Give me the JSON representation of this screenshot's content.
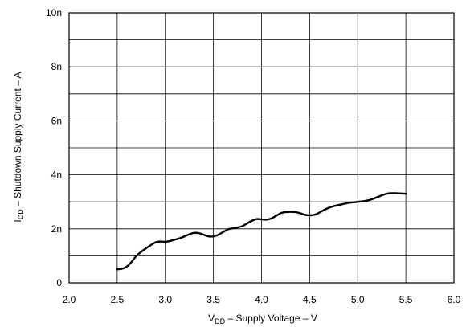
{
  "chart_data": {
    "type": "line",
    "xlabel": {
      "main": "V",
      "sub": "DD",
      "rest": " – Supply Voltage – V"
    },
    "ylabel": {
      "main": "I",
      "sub": "DD",
      "rest": " – Shutdown Supply Current – A"
    },
    "xlim": [
      2.0,
      6.0
    ],
    "ylim": [
      0,
      10
    ],
    "xticks": [
      2.0,
      2.5,
      3.0,
      3.5,
      4.0,
      4.5,
      5.0,
      5.5,
      6.0
    ],
    "xtick_labels": [
      "2.0",
      "2.5",
      "3.0",
      "3.5",
      "4.0",
      "4.5",
      "5.0",
      "5.5",
      "6.0"
    ],
    "yticks": [
      0,
      2,
      4,
      6,
      8,
      10
    ],
    "ytick_labels": [
      "0",
      "2n",
      "4n",
      "6n",
      "8n",
      "10n"
    ],
    "grid_x": [
      2.0,
      2.5,
      3.0,
      3.5,
      4.0,
      4.5,
      5.0,
      5.5,
      6.0
    ],
    "grid_y": [
      0,
      1,
      2,
      3,
      4,
      5,
      6,
      7,
      8,
      9,
      10
    ],
    "grid": true,
    "series": [
      {
        "x": [
          2.5,
          2.55,
          2.6,
          2.65,
          2.7,
          2.75,
          2.8,
          2.85,
          2.9,
          2.95,
          3.0,
          3.05,
          3.1,
          3.15,
          3.2,
          3.25,
          3.3,
          3.35,
          3.4,
          3.45,
          3.5,
          3.55,
          3.6,
          3.65,
          3.7,
          3.75,
          3.8,
          3.85,
          3.9,
          3.95,
          4.0,
          4.05,
          4.1,
          4.15,
          4.2,
          4.25,
          4.3,
          4.35,
          4.4,
          4.45,
          4.5,
          4.55,
          4.6,
          4.65,
          4.7,
          4.75,
          4.8,
          4.85,
          4.9,
          4.95,
          5.0,
          5.05,
          5.1,
          5.15,
          5.2,
          5.25,
          5.3,
          5.35,
          5.4,
          5.45,
          5.5
        ],
        "y": [
          0.5,
          0.52,
          0.6,
          0.78,
          1.0,
          1.15,
          1.28,
          1.4,
          1.5,
          1.53,
          1.52,
          1.55,
          1.6,
          1.65,
          1.72,
          1.8,
          1.85,
          1.84,
          1.78,
          1.72,
          1.72,
          1.78,
          1.88,
          1.98,
          2.02,
          2.05,
          2.1,
          2.2,
          2.3,
          2.36,
          2.35,
          2.34,
          2.38,
          2.48,
          2.58,
          2.62,
          2.63,
          2.62,
          2.58,
          2.52,
          2.5,
          2.52,
          2.6,
          2.7,
          2.78,
          2.84,
          2.88,
          2.92,
          2.96,
          2.98,
          3.0,
          3.02,
          3.05,
          3.1,
          3.17,
          3.24,
          3.3,
          3.32,
          3.32,
          3.31,
          3.3
        ],
        "color": "#000000"
      }
    ]
  }
}
